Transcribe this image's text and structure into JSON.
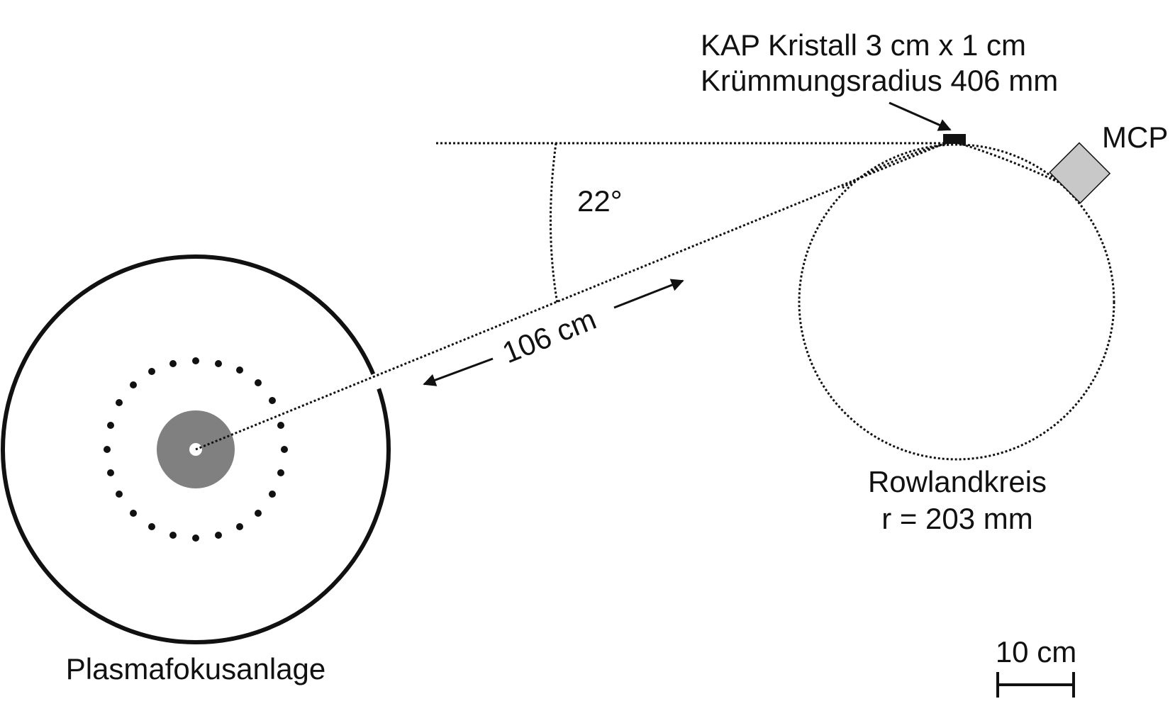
{
  "crystal": {
    "line1": "KAP Kristall 3 cm x 1 cm",
    "line2": "Krümmungsradius 406 mm"
  },
  "detector": {
    "label": "MCP"
  },
  "angle": {
    "label": "22°"
  },
  "distance": {
    "label": "106 cm"
  },
  "rowland_circle": {
    "line1": "Rowlandkreis",
    "line2": "r = 203 mm"
  },
  "plasma_focus": {
    "label": "Plasmafokusanlage"
  },
  "scale_bar": {
    "label": "10 cm"
  },
  "colors": {
    "line": "#111111",
    "plasma_core": "#808080",
    "detector_fill": "#c8c8c8",
    "background": "#ffffff"
  }
}
